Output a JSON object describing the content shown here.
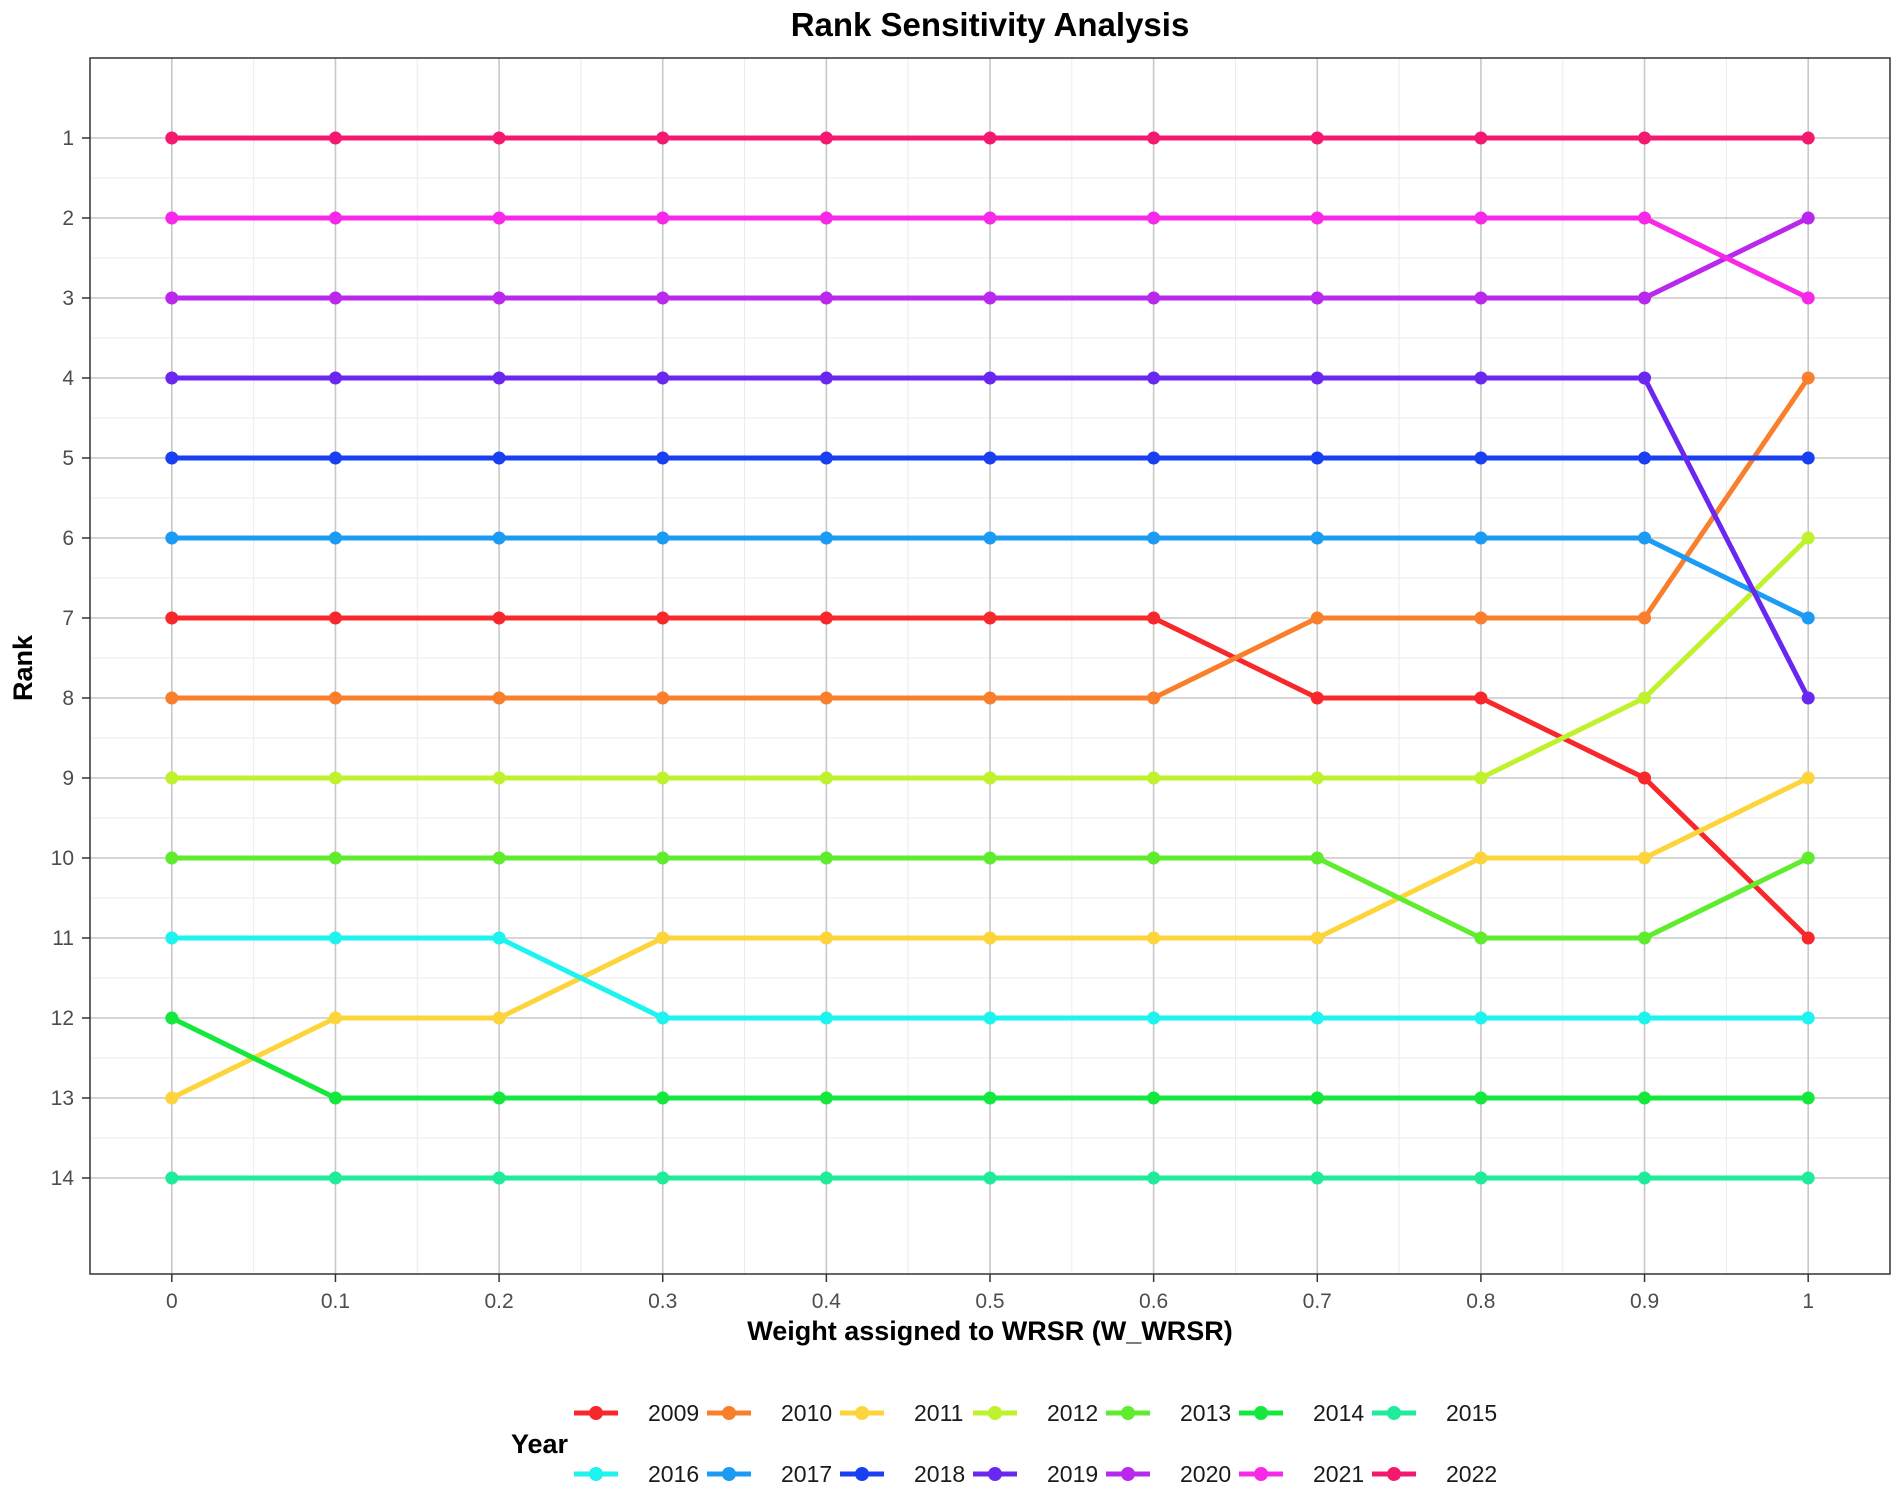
{
  "chart_data": {
    "type": "line",
    "title": "Rank Sensitivity Analysis",
    "xlabel": "Weight assigned to WRSR (W_WRSR)",
    "ylabel": "Rank",
    "x": [
      0,
      0.1,
      0.2,
      0.3,
      0.4,
      0.5,
      0.6,
      0.7,
      0.8,
      0.9,
      1
    ],
    "x_tick_labels": [
      "0",
      "0.1",
      "0.2",
      "0.3",
      "0.4",
      "0.5",
      "0.6",
      "0.7",
      "0.8",
      "0.9",
      "1"
    ],
    "y_ticks": [
      1,
      2,
      3,
      4,
      5,
      6,
      7,
      8,
      9,
      10,
      11,
      12,
      13,
      14
    ],
    "xlim": [
      -0.05,
      1.05
    ],
    "ylim": [
      0,
      15.2
    ],
    "y_reversed": true,
    "grid": true,
    "legend": {
      "title": "Year",
      "position": "bottom"
    },
    "series": [
      {
        "name": "2009",
        "color": "#f8272b",
        "values": [
          7,
          7,
          7,
          7,
          7,
          7,
          7,
          8,
          8,
          9,
          11
        ]
      },
      {
        "name": "2010",
        "color": "#f97f2c",
        "values": [
          8,
          8,
          8,
          8,
          8,
          8,
          8,
          7,
          7,
          7,
          4
        ]
      },
      {
        "name": "2011",
        "color": "#fdd43a",
        "values": [
          13,
          12,
          12,
          11,
          11,
          11,
          11,
          11,
          10,
          10,
          9
        ]
      },
      {
        "name": "2012",
        "color": "#bff22c",
        "values": [
          9,
          9,
          9,
          9,
          9,
          9,
          9,
          9,
          9,
          8,
          6
        ]
      },
      {
        "name": "2013",
        "color": "#5fec2c",
        "values": [
          10,
          10,
          10,
          10,
          10,
          10,
          10,
          10,
          11,
          11,
          10
        ]
      },
      {
        "name": "2014",
        "color": "#14e83c",
        "values": [
          12,
          13,
          13,
          13,
          13,
          13,
          13,
          13,
          13,
          13,
          13
        ]
      },
      {
        "name": "2015",
        "color": "#1eec9a",
        "values": [
          14,
          14,
          14,
          14,
          14,
          14,
          14,
          14,
          14,
          14,
          14
        ]
      },
      {
        "name": "2016",
        "color": "#1ef4ef",
        "values": [
          11,
          11,
          11,
          12,
          12,
          12,
          12,
          12,
          12,
          12,
          12
        ]
      },
      {
        "name": "2017",
        "color": "#1b9bf3",
        "values": [
          6,
          6,
          6,
          6,
          6,
          6,
          6,
          6,
          6,
          6,
          7
        ]
      },
      {
        "name": "2018",
        "color": "#1840f2",
        "values": [
          5,
          5,
          5,
          5,
          5,
          5,
          5,
          5,
          5,
          5,
          5
        ]
      },
      {
        "name": "2019",
        "color": "#6a27ef",
        "values": [
          4,
          4,
          4,
          4,
          4,
          4,
          4,
          4,
          4,
          4,
          8
        ]
      },
      {
        "name": "2020",
        "color": "#b928ec",
        "values": [
          3,
          3,
          3,
          3,
          3,
          3,
          3,
          3,
          3,
          3,
          2
        ]
      },
      {
        "name": "2021",
        "color": "#f828e8",
        "values": [
          2,
          2,
          2,
          2,
          2,
          2,
          2,
          2,
          2,
          2,
          3
        ]
      },
      {
        "name": "2022",
        "color": "#f4196f",
        "values": [
          1,
          1,
          1,
          1,
          1,
          1,
          1,
          1,
          1,
          1,
          1
        ]
      }
    ]
  }
}
